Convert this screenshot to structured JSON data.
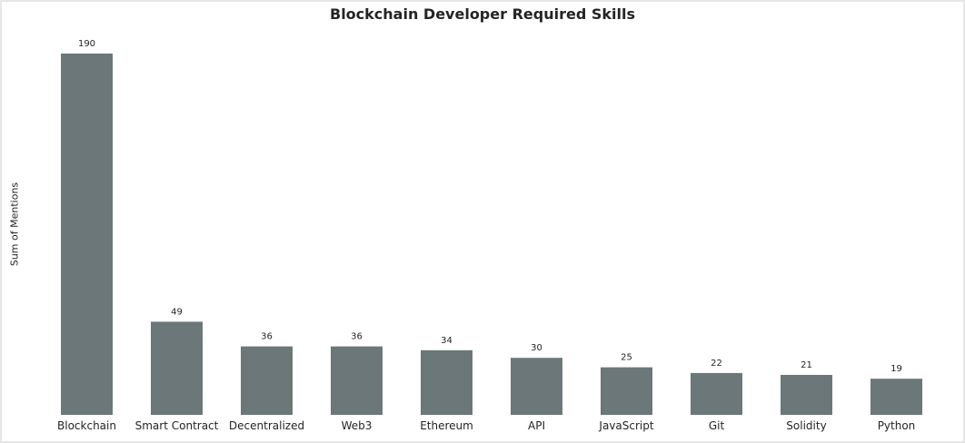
{
  "chart_data": {
    "type": "bar",
    "title": "Blockchain Developer Required Skills",
    "xlabel": "",
    "ylabel": "Sum of Mentions",
    "categories": [
      "Blockchain",
      "Smart Contract",
      "Decentralized",
      "Web3",
      "Ethereum",
      "API",
      "JavaScript",
      "Git",
      "Solidity",
      "Python"
    ],
    "values": [
      190,
      49,
      36,
      36,
      34,
      30,
      25,
      22,
      21,
      19
    ],
    "ylim": [
      0,
      190
    ],
    "grid": false,
    "data_labels": true,
    "bar_color": "#6b7779"
  }
}
